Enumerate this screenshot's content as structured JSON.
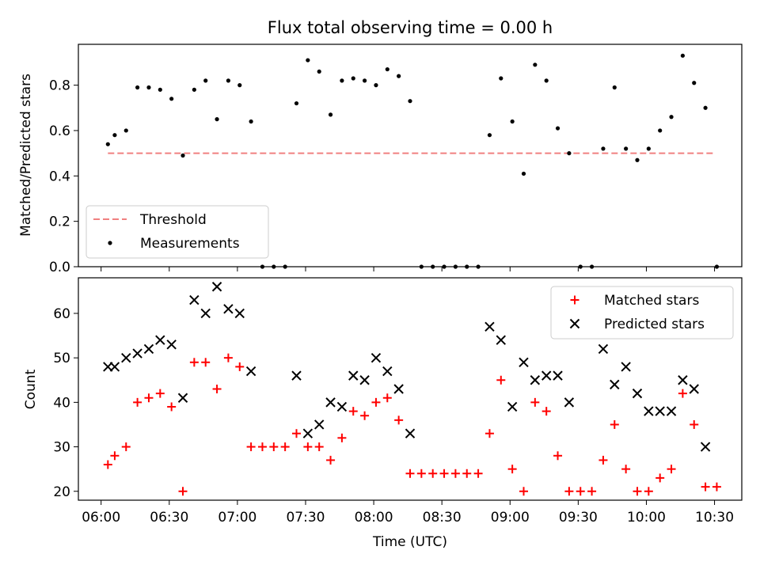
{
  "chart_data": [
    {
      "type": "scatter",
      "title": "Flux total observing time = 0.00 h",
      "xlabel": "",
      "ylabel": "Matched/Predicted stars",
      "xlim": [
        "05:50",
        "10:42"
      ],
      "ylim": [
        0.0,
        0.98
      ],
      "yticks": [
        "0.0",
        "0.2",
        "0.4",
        "0.6",
        "0.8"
      ],
      "grid": false,
      "legend_position": "lower-left",
      "threshold": {
        "name": "Threshold",
        "value": 0.5,
        "x_start": "06:03",
        "x_end": "10:30",
        "color": "#f08080",
        "style": "dashed"
      },
      "series": [
        {
          "name": "Measurements",
          "color": "#000000",
          "marker": "dot",
          "points": [
            [
              "06:03",
              0.54
            ],
            [
              "06:06",
              0.58
            ],
            [
              "06:11",
              0.6
            ],
            [
              "06:16",
              0.79
            ],
            [
              "06:21",
              0.79
            ],
            [
              "06:26",
              0.78
            ],
            [
              "06:31",
              0.74
            ],
            [
              "06:36",
              0.49
            ],
            [
              "06:41",
              0.78
            ],
            [
              "06:46",
              0.82
            ],
            [
              "06:51",
              0.65
            ],
            [
              "06:56",
              0.82
            ],
            [
              "07:01",
              0.8
            ],
            [
              "07:06",
              0.64
            ],
            [
              "07:11",
              0.0
            ],
            [
              "07:16",
              0.0
            ],
            [
              "07:21",
              0.0
            ],
            [
              "07:26",
              0.72
            ],
            [
              "07:31",
              0.91
            ],
            [
              "07:36",
              0.86
            ],
            [
              "07:41",
              0.67
            ],
            [
              "07:46",
              0.82
            ],
            [
              "07:51",
              0.83
            ],
            [
              "07:56",
              0.82
            ],
            [
              "08:01",
              0.8
            ],
            [
              "08:06",
              0.87
            ],
            [
              "08:11",
              0.84
            ],
            [
              "08:16",
              0.73
            ],
            [
              "08:21",
              0.0
            ],
            [
              "08:26",
              0.0
            ],
            [
              "08:31",
              0.0
            ],
            [
              "08:36",
              0.0
            ],
            [
              "08:41",
              0.0
            ],
            [
              "08:46",
              0.0
            ],
            [
              "08:51",
              0.58
            ],
            [
              "08:56",
              0.83
            ],
            [
              "09:01",
              0.64
            ],
            [
              "09:06",
              0.41
            ],
            [
              "09:11",
              0.89
            ],
            [
              "09:16",
              0.82
            ],
            [
              "09:21",
              0.61
            ],
            [
              "09:26",
              0.5
            ],
            [
              "09:31",
              0.0
            ],
            [
              "09:36",
              0.0
            ],
            [
              "09:41",
              0.52
            ],
            [
              "09:46",
              0.79
            ],
            [
              "09:51",
              0.52
            ],
            [
              "09:56",
              0.47
            ],
            [
              "10:01",
              0.52
            ],
            [
              "10:06",
              0.6
            ],
            [
              "10:11",
              0.66
            ],
            [
              "10:16",
              0.93
            ],
            [
              "10:21",
              0.81
            ],
            [
              "10:26",
              0.7
            ],
            [
              "10:31",
              0.0
            ]
          ]
        }
      ],
      "legend": [
        "Threshold",
        "Measurements"
      ]
    },
    {
      "type": "scatter",
      "title": "",
      "xlabel": "Time (UTC)",
      "ylabel": "Count",
      "xlim": [
        "05:50",
        "10:42"
      ],
      "ylim": [
        18,
        68
      ],
      "xticks": [
        "06:00",
        "06:30",
        "07:00",
        "07:30",
        "08:00",
        "08:30",
        "09:00",
        "09:30",
        "10:00",
        "10:30"
      ],
      "yticks": [
        "20",
        "30",
        "40",
        "50",
        "60"
      ],
      "grid": false,
      "legend_position": "top-right",
      "series": [
        {
          "name": "Matched stars",
          "color": "#ff0000",
          "marker": "plus",
          "points": [
            [
              "06:03",
              26
            ],
            [
              "06:06",
              28
            ],
            [
              "06:11",
              30
            ],
            [
              "06:16",
              40
            ],
            [
              "06:21",
              41
            ],
            [
              "06:26",
              42
            ],
            [
              "06:31",
              39
            ],
            [
              "06:36",
              20
            ],
            [
              "06:41",
              49
            ],
            [
              "06:46",
              49
            ],
            [
              "06:51",
              43
            ],
            [
              "06:56",
              50
            ],
            [
              "07:01",
              48
            ],
            [
              "07:06",
              30
            ],
            [
              "07:11",
              30
            ],
            [
              "07:16",
              30
            ],
            [
              "07:21",
              30
            ],
            [
              "07:26",
              33
            ],
            [
              "07:31",
              30
            ],
            [
              "07:36",
              30
            ],
            [
              "07:41",
              27
            ],
            [
              "07:46",
              32
            ],
            [
              "07:51",
              38
            ],
            [
              "07:56",
              37
            ],
            [
              "08:01",
              40
            ],
            [
              "08:06",
              41
            ],
            [
              "08:11",
              36
            ],
            [
              "08:16",
              24
            ],
            [
              "08:21",
              24
            ],
            [
              "08:26",
              24
            ],
            [
              "08:31",
              24
            ],
            [
              "08:36",
              24
            ],
            [
              "08:41",
              24
            ],
            [
              "08:46",
              24
            ],
            [
              "08:51",
              33
            ],
            [
              "08:56",
              45
            ],
            [
              "09:01",
              25
            ],
            [
              "09:06",
              20
            ],
            [
              "09:11",
              40
            ],
            [
              "09:16",
              38
            ],
            [
              "09:21",
              28
            ],
            [
              "09:26",
              20
            ],
            [
              "09:31",
              20
            ],
            [
              "09:36",
              20
            ],
            [
              "09:41",
              27
            ],
            [
              "09:46",
              35
            ],
            [
              "09:51",
              25
            ],
            [
              "09:56",
              20
            ],
            [
              "10:01",
              20
            ],
            [
              "10:06",
              23
            ],
            [
              "10:11",
              25
            ],
            [
              "10:16",
              42
            ],
            [
              "10:21",
              35
            ],
            [
              "10:26",
              21
            ],
            [
              "10:31",
              21
            ]
          ]
        },
        {
          "name": "Predicted stars",
          "color": "#000000",
          "marker": "x",
          "points": [
            [
              "06:03",
              48
            ],
            [
              "06:06",
              48
            ],
            [
              "06:11",
              50
            ],
            [
              "06:16",
              51
            ],
            [
              "06:21",
              52
            ],
            [
              "06:26",
              54
            ],
            [
              "06:31",
              53
            ],
            [
              "06:36",
              41
            ],
            [
              "06:41",
              63
            ],
            [
              "06:46",
              60
            ],
            [
              "06:51",
              66
            ],
            [
              "06:56",
              61
            ],
            [
              "07:01",
              60
            ],
            [
              "07:06",
              47
            ],
            [
              "07:26",
              46
            ],
            [
              "07:31",
              33
            ],
            [
              "07:36",
              35
            ],
            [
              "07:41",
              40
            ],
            [
              "07:46",
              39
            ],
            [
              "07:51",
              46
            ],
            [
              "07:56",
              45
            ],
            [
              "08:01",
              50
            ],
            [
              "08:06",
              47
            ],
            [
              "08:11",
              43
            ],
            [
              "08:16",
              33
            ],
            [
              "08:51",
              57
            ],
            [
              "08:56",
              54
            ],
            [
              "09:01",
              39
            ],
            [
              "09:06",
              49
            ],
            [
              "09:11",
              45
            ],
            [
              "09:16",
              46
            ],
            [
              "09:21",
              46
            ],
            [
              "09:26",
              40
            ],
            [
              "09:41",
              52
            ],
            [
              "09:46",
              44
            ],
            [
              "09:51",
              48
            ],
            [
              "09:56",
              42
            ],
            [
              "10:01",
              38
            ],
            [
              "10:06",
              38
            ],
            [
              "10:11",
              38
            ],
            [
              "10:16",
              45
            ],
            [
              "10:21",
              43
            ],
            [
              "10:26",
              30
            ]
          ]
        }
      ],
      "legend": [
        "Matched stars",
        "Predicted stars"
      ]
    }
  ]
}
